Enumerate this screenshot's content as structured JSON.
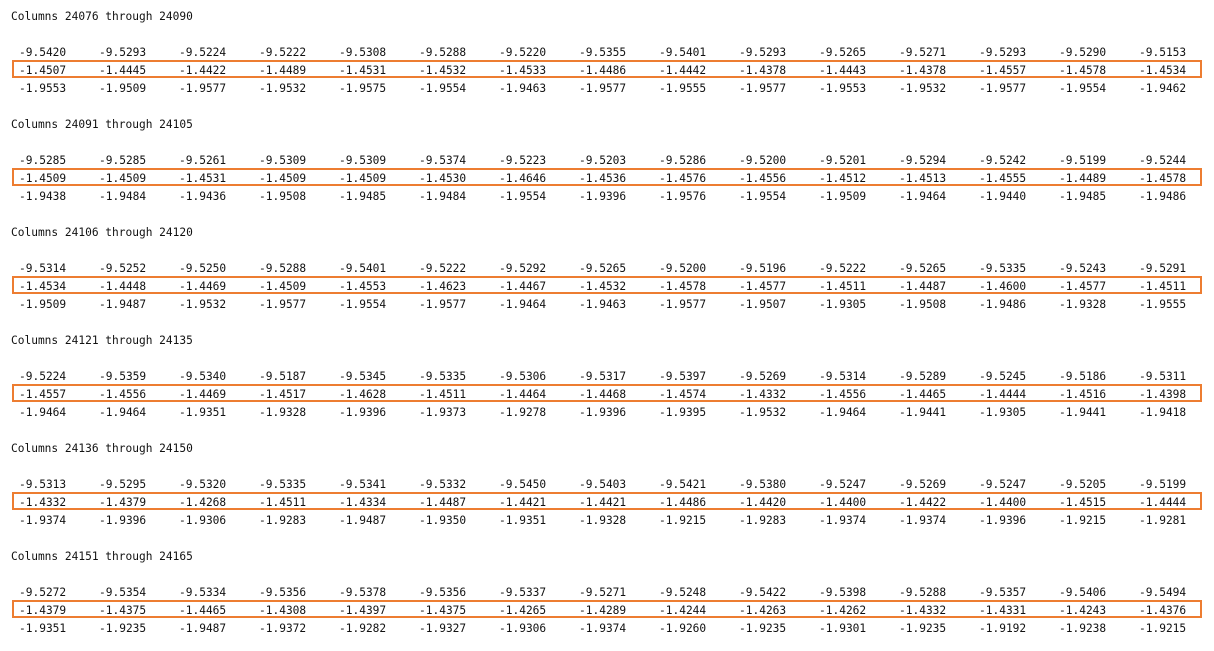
{
  "highlight_color": "#ED7D31",
  "blocks": [
    {
      "header": "Columns 24076 through 24090",
      "rows": [
        [
          "-9.5420",
          "-9.5293",
          "-9.5224",
          "-9.5222",
          "-9.5308",
          "-9.5288",
          "-9.5220",
          "-9.5355",
          "-9.5401",
          "-9.5293",
          "-9.5265",
          "-9.5271",
          "-9.5293",
          "-9.5290",
          "-9.5153"
        ],
        [
          "-1.4507",
          "-1.4445",
          "-1.4422",
          "-1.4489",
          "-1.4531",
          "-1.4532",
          "-1.4533",
          "-1.4486",
          "-1.4442",
          "-1.4378",
          "-1.4443",
          "-1.4378",
          "-1.4557",
          "-1.4578",
          "-1.4534"
        ],
        [
          "-1.9553",
          "-1.9509",
          "-1.9577",
          "-1.9532",
          "-1.9575",
          "-1.9554",
          "-1.9463",
          "-1.9577",
          "-1.9555",
          "-1.9577",
          "-1.9553",
          "-1.9532",
          "-1.9577",
          "-1.9554",
          "-1.9462"
        ]
      ]
    },
    {
      "header": "Columns 24091 through 24105",
      "rows": [
        [
          "-9.5285",
          "-9.5285",
          "-9.5261",
          "-9.5309",
          "-9.5309",
          "-9.5374",
          "-9.5223",
          "-9.5203",
          "-9.5286",
          "-9.5200",
          "-9.5201",
          "-9.5294",
          "-9.5242",
          "-9.5199",
          "-9.5244"
        ],
        [
          "-1.4509",
          "-1.4509",
          "-1.4531",
          "-1.4509",
          "-1.4509",
          "-1.4530",
          "-1.4646",
          "-1.4536",
          "-1.4576",
          "-1.4556",
          "-1.4512",
          "-1.4513",
          "-1.4555",
          "-1.4489",
          "-1.4578"
        ],
        [
          "-1.9438",
          "-1.9484",
          "-1.9436",
          "-1.9508",
          "-1.9485",
          "-1.9484",
          "-1.9554",
          "-1.9396",
          "-1.9576",
          "-1.9554",
          "-1.9509",
          "-1.9464",
          "-1.9440",
          "-1.9485",
          "-1.9486"
        ]
      ]
    },
    {
      "header": "Columns 24106 through 24120",
      "rows": [
        [
          "-9.5314",
          "-9.5252",
          "-9.5250",
          "-9.5288",
          "-9.5401",
          "-9.5222",
          "-9.5292",
          "-9.5265",
          "-9.5200",
          "-9.5196",
          "-9.5222",
          "-9.5265",
          "-9.5335",
          "-9.5243",
          "-9.5291"
        ],
        [
          "-1.4534",
          "-1.4448",
          "-1.4469",
          "-1.4509",
          "-1.4553",
          "-1.4623",
          "-1.4467",
          "-1.4532",
          "-1.4578",
          "-1.4577",
          "-1.4511",
          "-1.4487",
          "-1.4600",
          "-1.4577",
          "-1.4511"
        ],
        [
          "-1.9509",
          "-1.9487",
          "-1.9532",
          "-1.9577",
          "-1.9554",
          "-1.9577",
          "-1.9464",
          "-1.9463",
          "-1.9577",
          "-1.9507",
          "-1.9305",
          "-1.9508",
          "-1.9486",
          "-1.9328",
          "-1.9555"
        ]
      ]
    },
    {
      "header": "Columns 24121 through 24135",
      "rows": [
        [
          "-9.5224",
          "-9.5359",
          "-9.5340",
          "-9.5187",
          "-9.5345",
          "-9.5335",
          "-9.5306",
          "-9.5317",
          "-9.5397",
          "-9.5269",
          "-9.5314",
          "-9.5289",
          "-9.5245",
          "-9.5186",
          "-9.5311"
        ],
        [
          "-1.4557",
          "-1.4556",
          "-1.4469",
          "-1.4517",
          "-1.4628",
          "-1.4511",
          "-1.4464",
          "-1.4468",
          "-1.4574",
          "-1.4332",
          "-1.4556",
          "-1.4465",
          "-1.4444",
          "-1.4516",
          "-1.4398"
        ],
        [
          "-1.9464",
          "-1.9464",
          "-1.9351",
          "-1.9328",
          "-1.9396",
          "-1.9373",
          "-1.9278",
          "-1.9396",
          "-1.9395",
          "-1.9532",
          "-1.9464",
          "-1.9441",
          "-1.9305",
          "-1.9441",
          "-1.9418"
        ]
      ]
    },
    {
      "header": "Columns 24136 through 24150",
      "rows": [
        [
          "-9.5313",
          "-9.5295",
          "-9.5320",
          "-9.5335",
          "-9.5341",
          "-9.5332",
          "-9.5450",
          "-9.5403",
          "-9.5421",
          "-9.5380",
          "-9.5247",
          "-9.5269",
          "-9.5247",
          "-9.5205",
          "-9.5199"
        ],
        [
          "-1.4332",
          "-1.4379",
          "-1.4268",
          "-1.4511",
          "-1.4334",
          "-1.4487",
          "-1.4421",
          "-1.4421",
          "-1.4486",
          "-1.4420",
          "-1.4400",
          "-1.4422",
          "-1.4400",
          "-1.4515",
          "-1.4444"
        ],
        [
          "-1.9374",
          "-1.9396",
          "-1.9306",
          "-1.9283",
          "-1.9487",
          "-1.9350",
          "-1.9351",
          "-1.9328",
          "-1.9215",
          "-1.9283",
          "-1.9374",
          "-1.9374",
          "-1.9396",
          "-1.9215",
          "-1.9281"
        ]
      ]
    },
    {
      "header": "Columns 24151 through 24165",
      "rows": [
        [
          "-9.5272",
          "-9.5354",
          "-9.5334",
          "-9.5356",
          "-9.5378",
          "-9.5356",
          "-9.5337",
          "-9.5271",
          "-9.5248",
          "-9.5422",
          "-9.5398",
          "-9.5288",
          "-9.5357",
          "-9.5406",
          "-9.5494"
        ],
        [
          "-1.4379",
          "-1.4375",
          "-1.4465",
          "-1.4308",
          "-1.4397",
          "-1.4375",
          "-1.4265",
          "-1.4289",
          "-1.4244",
          "-1.4263",
          "-1.4262",
          "-1.4332",
          "-1.4331",
          "-1.4243",
          "-1.4376"
        ],
        [
          "-1.9351",
          "-1.9235",
          "-1.9487",
          "-1.9372",
          "-1.9282",
          "-1.9327",
          "-1.9306",
          "-1.9374",
          "-1.9260",
          "-1.9235",
          "-1.9301",
          "-1.9235",
          "-1.9192",
          "-1.9238",
          "-1.9215"
        ]
      ]
    }
  ]
}
